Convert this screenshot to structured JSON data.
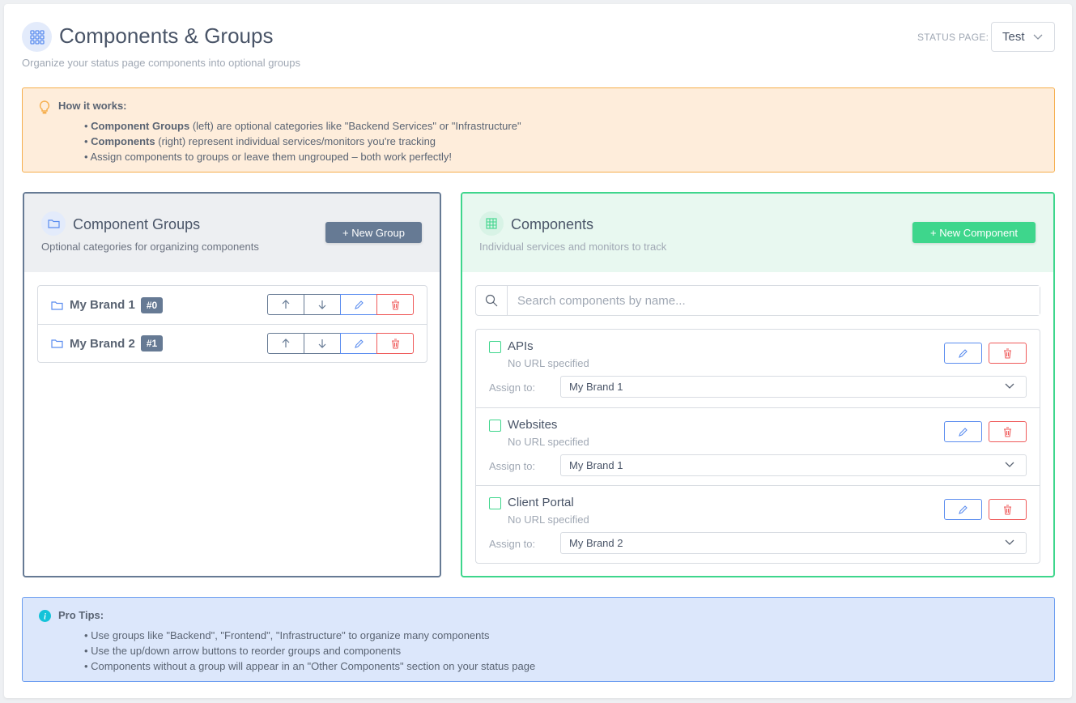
{
  "header": {
    "title": "Components & Groups",
    "subtitle": "Organize your status page components into optional groups",
    "icon": "grid-icon",
    "status_page_label": "STATUS PAGE:",
    "status_page_value": "Test"
  },
  "how_it_works": {
    "title": "How it works:",
    "icon": "lightbulb-icon",
    "items": [
      {
        "bold": "Component Groups",
        "text": " (left) are optional categories like \"Backend Services\" or \"Infrastructure\""
      },
      {
        "bold": "Components",
        "text": " (right) represent individual services/monitors you're tracking"
      },
      {
        "bold": "",
        "text": "Assign components to groups or leave them ungrouped – both work perfectly!"
      }
    ]
  },
  "groups_panel": {
    "title": "Component Groups",
    "subtitle": "Optional categories for organizing components",
    "new_button": "+ New Group",
    "groups": [
      {
        "name": "My Brand 1",
        "badge": "#0"
      },
      {
        "name": "My Brand 2",
        "badge": "#1"
      }
    ]
  },
  "components_panel": {
    "title": "Components",
    "subtitle": "Individual services and monitors to track",
    "new_button": "+ New Component",
    "search_placeholder": "Search components by name...",
    "assign_label": "Assign to:",
    "components": [
      {
        "name": "APIs",
        "url": "No URL specified",
        "group": "My Brand 1"
      },
      {
        "name": "Websites",
        "url": "No URL specified",
        "group": "My Brand 1"
      },
      {
        "name": "Client Portal",
        "url": "No URL specified",
        "group": "My Brand 2"
      }
    ]
  },
  "pro_tips": {
    "title": "Pro Tips:",
    "icon": "info-icon",
    "items": [
      "Use groups like \"Backend\", \"Frontend\", \"Infrastructure\" to organize many components",
      "Use the up/down arrow buttons to reorder groups and components",
      "Components without a group will appear in an \"Other Components\" section on your status page"
    ]
  },
  "colors": {
    "accent_blue": "#5b8def",
    "green": "#3ed68c",
    "slate": "#667a94",
    "danger": "#ef5a5a",
    "warning_bg": "#feeddb",
    "info_bg": "#dce7fb"
  }
}
